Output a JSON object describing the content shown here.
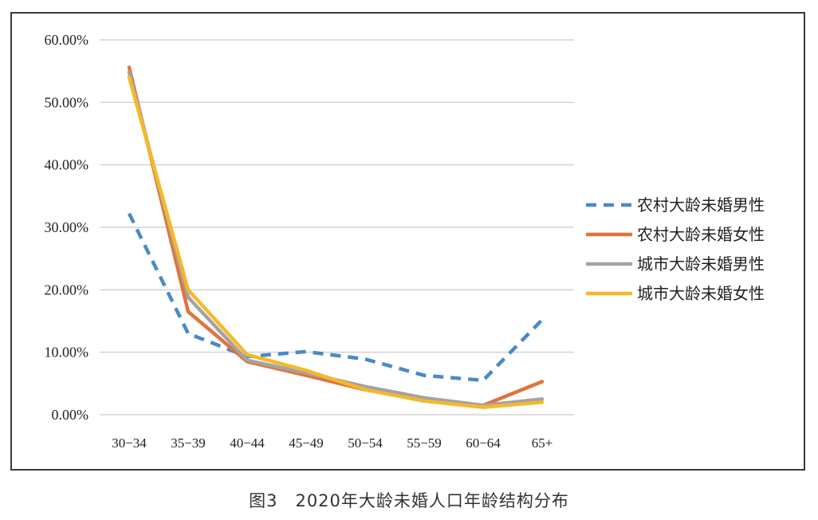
{
  "caption": "图3　2020年大龄未婚人口年龄结构分布",
  "chart_data": {
    "type": "line",
    "title": "",
    "xlabel": "",
    "ylabel": "",
    "categories": [
      "30−34",
      "35−39",
      "40−44",
      "45−49",
      "50−54",
      "55−59",
      "60−64",
      "65+"
    ],
    "y_ticks": [
      "0.00%",
      "10.00%",
      "20.00%",
      "30.00%",
      "40.00%",
      "50.00%",
      "60.00%"
    ],
    "ylim": [
      0,
      60
    ],
    "grid": true,
    "legend_position": "right",
    "series": [
      {
        "name": "农村大龄未婚男性",
        "color": "#4a8ac4",
        "dash": "dashed",
        "values": [
          32.2,
          13.0,
          9.3,
          10.1,
          8.9,
          6.3,
          5.5,
          15.2
        ]
      },
      {
        "name": "农村大龄未婚女性",
        "color": "#e0743c",
        "dash": "solid",
        "values": [
          55.6,
          16.5,
          8.5,
          6.3,
          4.0,
          2.4,
          1.5,
          5.3
        ]
      },
      {
        "name": "城市大龄未婚男性",
        "color": "#a3a3a3",
        "dash": "solid",
        "values": [
          54.8,
          18.8,
          8.7,
          6.7,
          4.5,
          2.7,
          1.5,
          2.5
        ]
      },
      {
        "name": "城市大龄未婚女性",
        "color": "#f4b92b",
        "dash": "solid",
        "values": [
          54.0,
          20.0,
          9.6,
          7.1,
          4.0,
          2.2,
          1.2,
          2.0
        ]
      }
    ]
  }
}
